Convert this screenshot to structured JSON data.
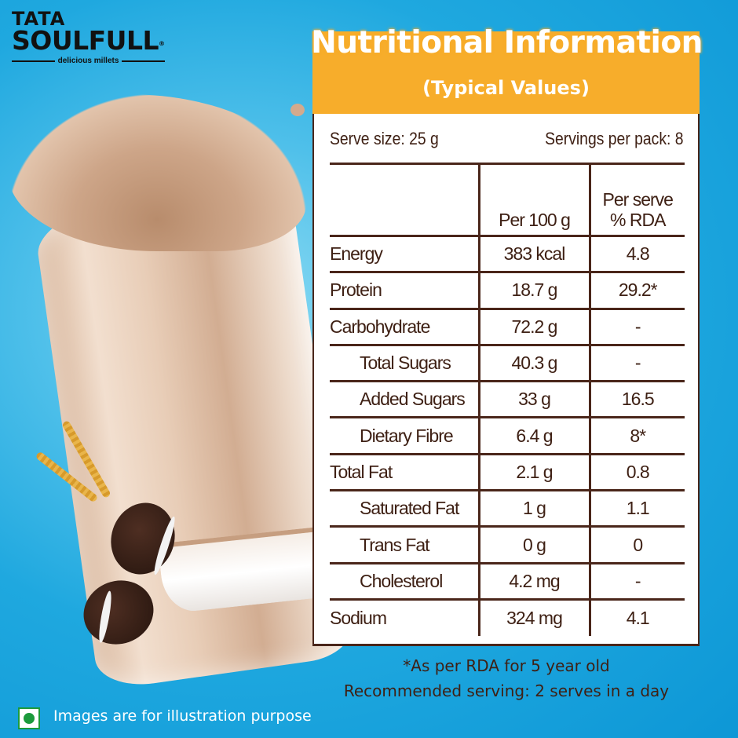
{
  "brand": {
    "line1": "TATA",
    "line2": "SOULFULL",
    "registered": "®",
    "tagline": "delicious millets"
  },
  "panel": {
    "title": "Nutritional Information",
    "subtitle": "(Typical Values)",
    "serve_size": "Serve size: 25 g",
    "servings_per_pack": "Servings per pack: 8",
    "columns": [
      "",
      "Per 100 g",
      "Per serve\n% RDA"
    ],
    "col_header_per100": "Per 100 g",
    "col_header_rda_line1": "Per serve",
    "col_header_rda_line2": "% RDA",
    "rows": [
      {
        "nutrient": "Energy",
        "per100": "383 kcal",
        "rda": "4.8",
        "indent": false
      },
      {
        "nutrient": "Protein",
        "per100": "18.7 g",
        "rda": "29.2*",
        "indent": false
      },
      {
        "nutrient": "Carbohydrate",
        "per100": "72.2 g",
        "rda": "-",
        "indent": false
      },
      {
        "nutrient": "Total Sugars",
        "per100": "40.3 g",
        "rda": "-",
        "indent": true
      },
      {
        "nutrient": "Added Sugars",
        "per100": "33 g",
        "rda": "16.5",
        "indent": true
      },
      {
        "nutrient": "Dietary Fibre",
        "per100": "6.4 g",
        "rda": "8*",
        "indent": true
      },
      {
        "nutrient": "Total Fat",
        "per100": "2.1 g",
        "rda": "0.8",
        "indent": false
      },
      {
        "nutrient": "Saturated Fat",
        "per100": "1 g",
        "rda": "1.1",
        "indent": true
      },
      {
        "nutrient": "Trans Fat",
        "per100": "0 g",
        "rda": "0",
        "indent": true
      },
      {
        "nutrient": "Cholesterol",
        "per100": "4.2 mg",
        "rda": "-",
        "indent": true
      },
      {
        "nutrient": "Sodium",
        "per100": "324 mg",
        "rda": "4.1",
        "indent": false
      }
    ]
  },
  "footnotes": {
    "rda_note": "*As per RDA for 5 year old",
    "recommended": "Recommended serving: 2 serves in a day"
  },
  "disclaimer": {
    "icon": "veg-mark-icon",
    "text": "Images are for illustration purpose"
  },
  "colors": {
    "background": "#1fa8df",
    "header_orange": "#f7ad2b",
    "text_brown": "#3e2014",
    "border_brown": "#4a261a",
    "veg_green": "#1b9a3c"
  }
}
